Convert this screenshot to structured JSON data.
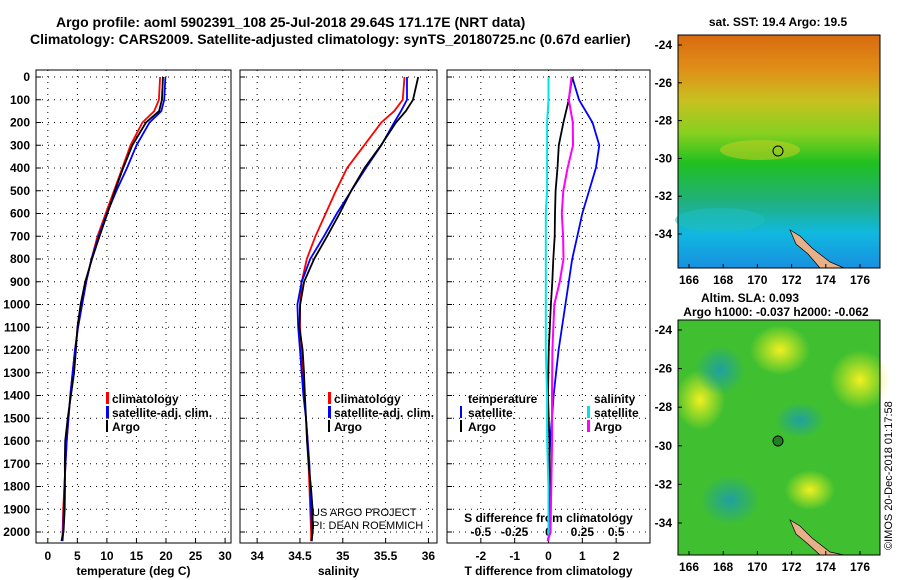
{
  "title_line1": "Argo profile: aoml 5902391_108 25-Jul-2018 29.64S 171.17E (NRT data)",
  "title_line2": "Climatology: CARS2009. Satellite-adjusted climatology: synTS_20180725.nc (0.67d earlier)",
  "credit": "US ARGO PROJECT",
  "pi": "PI: DEAN ROEMMICH",
  "copyright": "©IMOS 20-Dec-2018 01:17:58",
  "colors": {
    "climatology": "#ff0000",
    "satellite": "#0000ff",
    "argo": "#000000",
    "sal_satellite": "#00e5e5",
    "sal_argo": "#ff00ff"
  },
  "legend": {
    "climatology": "climatology",
    "satellite": "satellite-adj. clim.",
    "argo": "Argo",
    "temperature": "temperature",
    "salinity": "salinity",
    "sat_short": "satellite"
  },
  "chart_data": [
    {
      "type": "line",
      "name": "temperature-profile",
      "xlabel": "temperature (deg C)",
      "ylabel": "depth",
      "xlim": [
        -2,
        31
      ],
      "ylim": [
        2060,
        0
      ],
      "xticks": [
        0,
        5,
        10,
        15,
        20,
        25,
        30
      ],
      "yticks": [
        0,
        100,
        200,
        300,
        400,
        500,
        600,
        700,
        800,
        900,
        1000,
        1100,
        1200,
        1300,
        1400,
        1500,
        1600,
        1700,
        1800,
        1900,
        2000
      ],
      "depth": [
        0,
        100,
        150,
        200,
        300,
        400,
        500,
        600,
        700,
        800,
        900,
        1000,
        1100,
        1200,
        1300,
        1400,
        1500,
        1600,
        1700,
        1800,
        1900,
        2000,
        2040
      ],
      "series": [
        {
          "name": "climatology",
          "color": "#ff0000",
          "values": [
            19.0,
            18.8,
            18.0,
            16.0,
            14.0,
            12.6,
            11.2,
            9.8,
            8.4,
            7.4,
            6.5,
            5.8,
            5.1,
            4.6,
            4.2,
            3.8,
            3.5,
            3.2,
            3.0,
            2.8,
            2.6,
            2.5,
            2.4
          ]
        },
        {
          "name": "satellite-adj. clim.",
          "color": "#0000ff",
          "values": [
            19.9,
            19.7,
            19.2,
            17.2,
            15.0,
            13.4,
            11.6,
            10.0,
            8.6,
            7.4,
            6.5,
            5.8,
            5.1,
            4.6,
            4.2,
            3.8,
            3.5,
            3.2,
            3.0,
            2.8,
            2.7,
            2.6,
            2.5
          ]
        },
        {
          "name": "Argo",
          "color": "#000000",
          "values": [
            19.5,
            19.3,
            18.6,
            16.6,
            14.5,
            13.0,
            11.4,
            9.9,
            8.5,
            7.4,
            6.5,
            5.8,
            5.1,
            4.6,
            4.2,
            3.8,
            3.5,
            3.2,
            3.0,
            2.8,
            2.6,
            2.5,
            2.4
          ]
        }
      ]
    },
    {
      "type": "line",
      "name": "salinity-profile",
      "xlabel": "salinity",
      "xlim": [
        33.8,
        36.1
      ],
      "ylim": [
        2060,
        0
      ],
      "xticks": [
        34,
        34.5,
        35,
        35.5,
        36
      ],
      "depth": [
        0,
        100,
        150,
        200,
        300,
        400,
        500,
        600,
        700,
        800,
        900,
        1000,
        1100,
        1200,
        1300,
        1400,
        1500,
        1600,
        1700,
        1800,
        1900,
        2000,
        2040
      ],
      "series": [
        {
          "name": "climatology",
          "color": "#ff0000",
          "values": [
            35.72,
            35.7,
            35.6,
            35.45,
            35.25,
            35.05,
            34.92,
            34.8,
            34.68,
            34.58,
            34.52,
            34.5,
            34.5,
            34.52,
            34.53,
            34.55,
            34.57,
            34.59,
            34.6,
            34.61,
            34.62,
            34.63,
            34.63
          ]
        },
        {
          "name": "satellite-adj. clim.",
          "color": "#0000ff",
          "values": [
            35.75,
            35.75,
            35.68,
            35.6,
            35.45,
            35.27,
            35.1,
            34.93,
            34.78,
            34.62,
            34.52,
            34.47,
            34.48,
            34.5,
            34.52,
            34.54,
            34.57,
            34.59,
            34.61,
            34.62,
            34.63,
            34.64,
            34.64
          ]
        },
        {
          "name": "Argo",
          "color": "#000000",
          "values": [
            35.88,
            35.82,
            35.72,
            35.62,
            35.46,
            35.27,
            35.1,
            34.95,
            34.8,
            34.66,
            34.56,
            34.52,
            34.5,
            34.52,
            34.53,
            34.55,
            34.58,
            34.6,
            34.61,
            34.62,
            34.63,
            34.64,
            34.64
          ]
        }
      ]
    },
    {
      "type": "line",
      "name": "difference-profile",
      "xlabel": "T difference from climatology",
      "x2label": "S difference from climatology",
      "xlim": [
        -3,
        3
      ],
      "x2lim": [
        -0.75,
        0.75
      ],
      "xticks": [
        -2,
        -1,
        0,
        1,
        2
      ],
      "x2ticks": [
        "-0.5",
        "-0.25",
        "0",
        "0.25",
        "0.5"
      ],
      "ylim": [
        2060,
        0
      ],
      "depth": [
        0,
        100,
        200,
        300,
        400,
        500,
        600,
        700,
        800,
        900,
        1000,
        1200,
        1400,
        1600,
        1800,
        2000,
        2040
      ],
      "series": [
        {
          "name": "temperature satellite",
          "color": "#0000ff",
          "values": [
            0.7,
            0.9,
            1.3,
            1.5,
            1.4,
            1.2,
            1.0,
            0.85,
            0.7,
            0.6,
            0.5,
            0.3,
            0.15,
            0.05,
            0.0,
            0.0,
            0.0
          ]
        },
        {
          "name": "temperature Argo",
          "color": "#000000",
          "values": [
            0.7,
            0.6,
            0.4,
            0.3,
            0.3,
            0.25,
            0.2,
            0.15,
            0.1,
            0.1,
            0.1,
            0.05,
            0.0,
            0.0,
            0.0,
            0.0,
            0.0
          ]
        },
        {
          "name": "salinity satellite",
          "color": "#00e5e5",
          "values": [
            0.0,
            0.0,
            -0.01,
            -0.01,
            -0.01,
            -0.01,
            -0.02,
            -0.02,
            -0.02,
            -0.02,
            -0.02,
            -0.02,
            -0.01,
            -0.01,
            0.0,
            0.0,
            0.0
          ],
          "axis": "x2"
        },
        {
          "name": "salinity Argo",
          "color": "#ff00ff",
          "values": [
            0.17,
            0.15,
            0.17,
            0.18,
            0.15,
            0.12,
            0.1,
            0.1,
            0.1,
            0.08,
            0.05,
            0.04,
            0.03,
            0.02,
            0.01,
            0.01,
            0.0
          ],
          "axis": "x2"
        }
      ]
    }
  ],
  "maps": [
    {
      "name": "sst-map",
      "title": "sat. SST: 19.4 Argo: 19.5",
      "lon_ticks": [
        "166",
        "168",
        "170",
        "172",
        "174",
        "176"
      ],
      "lat_ticks": [
        "-24",
        "-26",
        "-28",
        "-30",
        "-32",
        "-34"
      ],
      "marker": {
        "lon": 171.17,
        "lat": -29.64
      }
    },
    {
      "name": "sla-map",
      "title1": "Altim. SLA: 0.093",
      "title2": "Argo h1000: -0.037 h2000: -0.062",
      "lon_ticks": [
        "166",
        "168",
        "170",
        "172",
        "174",
        "176"
      ],
      "lat_ticks": [
        "-24",
        "-26",
        "-28",
        "-30",
        "-32",
        "-34"
      ],
      "marker": {
        "lon": 171.17,
        "lat": -29.64
      }
    }
  ]
}
